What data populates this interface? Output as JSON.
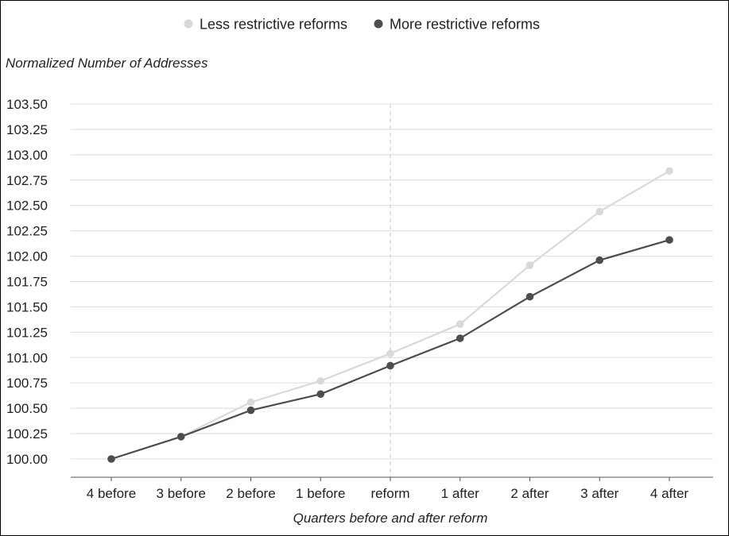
{
  "chart_data": {
    "type": "line",
    "title": "",
    "ylabel": "Normalized Number of Addresses",
    "xlabel": "Quarters before and after reform",
    "categories": [
      "4 before",
      "3 before",
      "2 before",
      "1 before",
      "reform",
      "1 after",
      "2 after",
      "3 after",
      "4 after"
    ],
    "ylim": [
      100.0,
      103.5
    ],
    "yticks": [
      "100.00",
      "100.25",
      "100.50",
      "100.75",
      "101.00",
      "101.25",
      "101.50",
      "101.75",
      "102.00",
      "102.25",
      "102.50",
      "102.75",
      "103.00",
      "103.25",
      "103.50"
    ],
    "grid": "horizontal",
    "reference_line": {
      "category": "reform",
      "style": "dashed"
    },
    "legend_position": "top-center",
    "series": [
      {
        "name": "Less restrictive reforms",
        "color": "#d9d9d9",
        "values": [
          100.0,
          100.22,
          100.56,
          100.77,
          101.04,
          101.33,
          101.91,
          102.44,
          102.84
        ]
      },
      {
        "name": "More restrictive reforms",
        "color": "#4d4d4d",
        "values": [
          100.0,
          100.22,
          100.48,
          100.64,
          100.92,
          101.19,
          101.6,
          101.96,
          102.16
        ]
      }
    ]
  }
}
